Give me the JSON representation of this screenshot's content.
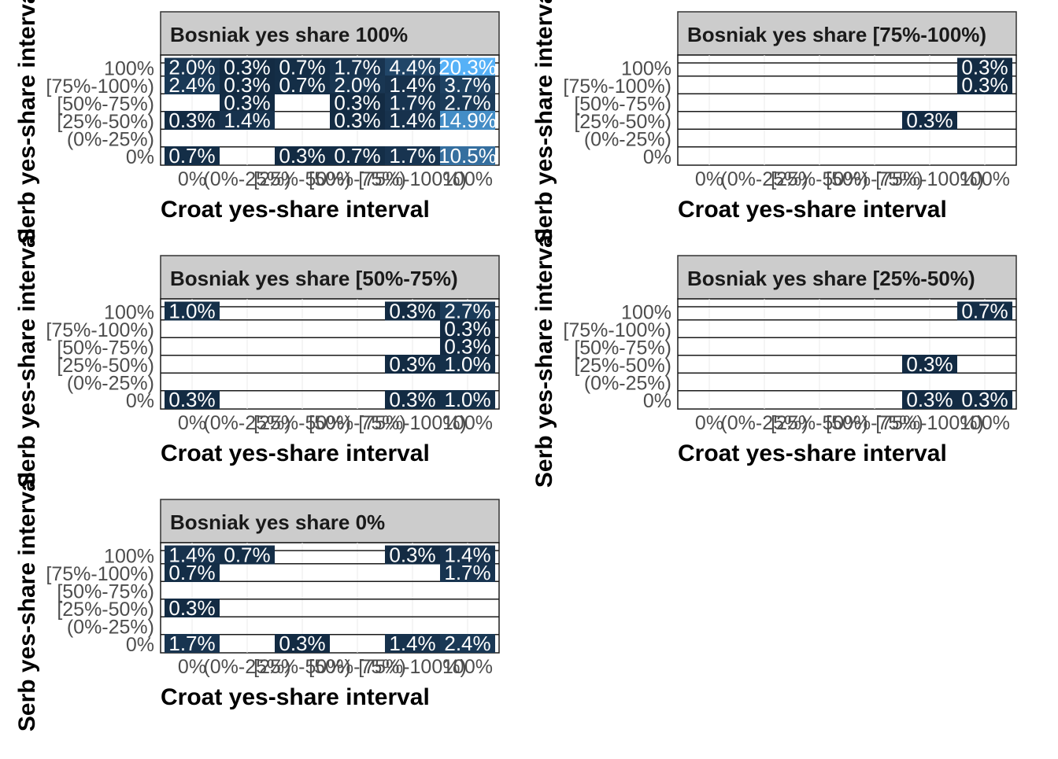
{
  "figure": {
    "ylabel": "Serb yes-share interval",
    "xlabel": "Croat yes-share interval"
  },
  "colors": {
    "low": "#132B43",
    "high": "#56B1F7",
    "strip_fill": "#cccccc",
    "tick_text": "#4d4d4d"
  },
  "chart_data": [
    {
      "type": "heatmap",
      "title": "Bosniak yes share 100%",
      "xlabel": "Croat yes-share interval",
      "ylabel": "Serb yes-share interval",
      "x_categories": [
        "0%",
        "(0%-25%)",
        "[25%-50%)",
        "[50%-75%)",
        "[75%-100%)",
        "100%"
      ],
      "y_categories": [
        "0%",
        "(0%-25%)",
        "[25%-50%)",
        "[50%-75%)",
        "[75%-100%)",
        "100%"
      ],
      "fill_range": [
        0.3,
        20.3
      ],
      "cells": [
        {
          "x": "0%",
          "y": "100%",
          "value": 2.0,
          "label": "2.0%"
        },
        {
          "x": "(0%-25%)",
          "y": "100%",
          "value": 0.3,
          "label": "0.3%"
        },
        {
          "x": "[25%-50%)",
          "y": "100%",
          "value": 0.7,
          "label": "0.7%"
        },
        {
          "x": "[50%-75%)",
          "y": "100%",
          "value": 1.7,
          "label": "1.7%"
        },
        {
          "x": "[75%-100%)",
          "y": "100%",
          "value": 4.4,
          "label": "4.4%"
        },
        {
          "x": "100%",
          "y": "100%",
          "value": 20.3,
          "label": "20.3%"
        },
        {
          "x": "0%",
          "y": "[75%-100%)",
          "value": 2.4,
          "label": "2.4%"
        },
        {
          "x": "(0%-25%)",
          "y": "[75%-100%)",
          "value": 0.3,
          "label": "0.3%"
        },
        {
          "x": "[25%-50%)",
          "y": "[75%-100%)",
          "value": 0.7,
          "label": "0.7%"
        },
        {
          "x": "[50%-75%)",
          "y": "[75%-100%)",
          "value": 2.0,
          "label": "2.0%"
        },
        {
          "x": "[75%-100%)",
          "y": "[75%-100%)",
          "value": 1.4,
          "label": "1.4%"
        },
        {
          "x": "100%",
          "y": "[75%-100%)",
          "value": 3.7,
          "label": "3.7%"
        },
        {
          "x": "(0%-25%)",
          "y": "[50%-75%)",
          "value": 0.3,
          "label": "0.3%"
        },
        {
          "x": "[50%-75%)",
          "y": "[50%-75%)",
          "value": 0.3,
          "label": "0.3%"
        },
        {
          "x": "[75%-100%)",
          "y": "[50%-75%)",
          "value": 1.7,
          "label": "1.7%"
        },
        {
          "x": "100%",
          "y": "[50%-75%)",
          "value": 2.7,
          "label": "2.7%"
        },
        {
          "x": "0%",
          "y": "[25%-50%)",
          "value": 0.3,
          "label": "0.3%"
        },
        {
          "x": "(0%-25%)",
          "y": "[25%-50%)",
          "value": 1.4,
          "label": "1.4%"
        },
        {
          "x": "[50%-75%)",
          "y": "[25%-50%)",
          "value": 0.3,
          "label": "0.3%"
        },
        {
          "x": "[75%-100%)",
          "y": "[25%-50%)",
          "value": 1.4,
          "label": "1.4%"
        },
        {
          "x": "100%",
          "y": "[25%-50%)",
          "value": 14.9,
          "label": "14.9%"
        },
        {
          "x": "0%",
          "y": "0%",
          "value": 0.7,
          "label": "0.7%"
        },
        {
          "x": "[25%-50%)",
          "y": "0%",
          "value": 0.3,
          "label": "0.3%"
        },
        {
          "x": "[50%-75%)",
          "y": "0%",
          "value": 0.7,
          "label": "0.7%"
        },
        {
          "x": "[75%-100%)",
          "y": "0%",
          "value": 1.7,
          "label": "1.7%"
        },
        {
          "x": "100%",
          "y": "0%",
          "value": 10.5,
          "label": "10.5%"
        }
      ]
    },
    {
      "type": "heatmap",
      "title": "Bosniak yes share [75%-100%)",
      "xlabel": "Croat yes-share interval",
      "ylabel": "Serb yes-share interval",
      "x_categories": [
        "0%",
        "(0%-25%)",
        "[25%-50%)",
        "[50%-75%)",
        "[75%-100%)",
        "100%"
      ],
      "y_categories": [
        "0%",
        "(0%-25%)",
        "[25%-50%)",
        "[50%-75%)",
        "[75%-100%)",
        "100%"
      ],
      "fill_range": [
        0.3,
        20.3
      ],
      "cells": [
        {
          "x": "100%",
          "y": "100%",
          "value": 0.3,
          "label": "0.3%"
        },
        {
          "x": "100%",
          "y": "[75%-100%)",
          "value": 0.3,
          "label": "0.3%"
        },
        {
          "x": "[75%-100%)",
          "y": "[25%-50%)",
          "value": 0.3,
          "label": "0.3%"
        }
      ]
    },
    {
      "type": "heatmap",
      "title": "Bosniak yes share [50%-75%)",
      "xlabel": "Croat yes-share interval",
      "ylabel": "Serb yes-share interval",
      "x_categories": [
        "0%",
        "(0%-25%)",
        "[25%-50%)",
        "[50%-75%)",
        "[75%-100%)",
        "100%"
      ],
      "y_categories": [
        "0%",
        "(0%-25%)",
        "[25%-50%)",
        "[50%-75%)",
        "[75%-100%)",
        "100%"
      ],
      "fill_range": [
        0.3,
        20.3
      ],
      "cells": [
        {
          "x": "0%",
          "y": "100%",
          "value": 1.0,
          "label": "1.0%"
        },
        {
          "x": "[75%-100%)",
          "y": "100%",
          "value": 0.3,
          "label": "0.3%"
        },
        {
          "x": "100%",
          "y": "100%",
          "value": 2.7,
          "label": "2.7%"
        },
        {
          "x": "100%",
          "y": "[75%-100%)",
          "value": 0.3,
          "label": "0.3%"
        },
        {
          "x": "100%",
          "y": "[50%-75%)",
          "value": 0.3,
          "label": "0.3%"
        },
        {
          "x": "[75%-100%)",
          "y": "[25%-50%)",
          "value": 0.3,
          "label": "0.3%"
        },
        {
          "x": "100%",
          "y": "[25%-50%)",
          "value": 1.0,
          "label": "1.0%"
        },
        {
          "x": "0%",
          "y": "0%",
          "value": 0.3,
          "label": "0.3%"
        },
        {
          "x": "[75%-100%)",
          "y": "0%",
          "value": 0.3,
          "label": "0.3%"
        },
        {
          "x": "100%",
          "y": "0%",
          "value": 1.0,
          "label": "1.0%"
        }
      ]
    },
    {
      "type": "heatmap",
      "title": "Bosniak yes share [25%-50%)",
      "xlabel": "Croat yes-share interval",
      "ylabel": "Serb yes-share interval",
      "x_categories": [
        "0%",
        "(0%-25%)",
        "[25%-50%)",
        "[50%-75%)",
        "[75%-100%)",
        "100%"
      ],
      "y_categories": [
        "0%",
        "(0%-25%)",
        "[25%-50%)",
        "[50%-75%)",
        "[75%-100%)",
        "100%"
      ],
      "fill_range": [
        0.3,
        20.3
      ],
      "cells": [
        {
          "x": "100%",
          "y": "100%",
          "value": 0.7,
          "label": "0.7%"
        },
        {
          "x": "[75%-100%)",
          "y": "[25%-50%)",
          "value": 0.3,
          "label": "0.3%"
        },
        {
          "x": "[75%-100%)",
          "y": "0%",
          "value": 0.3,
          "label": "0.3%"
        },
        {
          "x": "100%",
          "y": "0%",
          "value": 0.3,
          "label": "0.3%"
        }
      ]
    },
    {
      "type": "heatmap",
      "title": "Bosniak yes share 0%",
      "xlabel": "Croat yes-share interval",
      "ylabel": "Serb yes-share interval",
      "x_categories": [
        "0%",
        "(0%-25%)",
        "[25%-50%)",
        "[50%-75%)",
        "[75%-100%)",
        "100%"
      ],
      "y_categories": [
        "0%",
        "(0%-25%)",
        "[25%-50%)",
        "[50%-75%)",
        "[75%-100%)",
        "100%"
      ],
      "fill_range": [
        0.3,
        20.3
      ],
      "cells": [
        {
          "x": "0%",
          "y": "100%",
          "value": 1.4,
          "label": "1.4%"
        },
        {
          "x": "(0%-25%)",
          "y": "100%",
          "value": 0.7,
          "label": "0.7%"
        },
        {
          "x": "[75%-100%)",
          "y": "100%",
          "value": 0.3,
          "label": "0.3%"
        },
        {
          "x": "100%",
          "y": "100%",
          "value": 1.4,
          "label": "1.4%"
        },
        {
          "x": "0%",
          "y": "[75%-100%)",
          "value": 0.7,
          "label": "0.7%"
        },
        {
          "x": "100%",
          "y": "[75%-100%)",
          "value": 1.7,
          "label": "1.7%"
        },
        {
          "x": "0%",
          "y": "[25%-50%)",
          "value": 0.3,
          "label": "0.3%"
        },
        {
          "x": "0%",
          "y": "0%",
          "value": 1.7,
          "label": "1.7%"
        },
        {
          "x": "[25%-50%)",
          "y": "0%",
          "value": 0.3,
          "label": "0.3%"
        },
        {
          "x": "[75%-100%)",
          "y": "0%",
          "value": 1.4,
          "label": "1.4%"
        },
        {
          "x": "100%",
          "y": "0%",
          "value": 2.4,
          "label": "2.4%"
        }
      ]
    }
  ]
}
